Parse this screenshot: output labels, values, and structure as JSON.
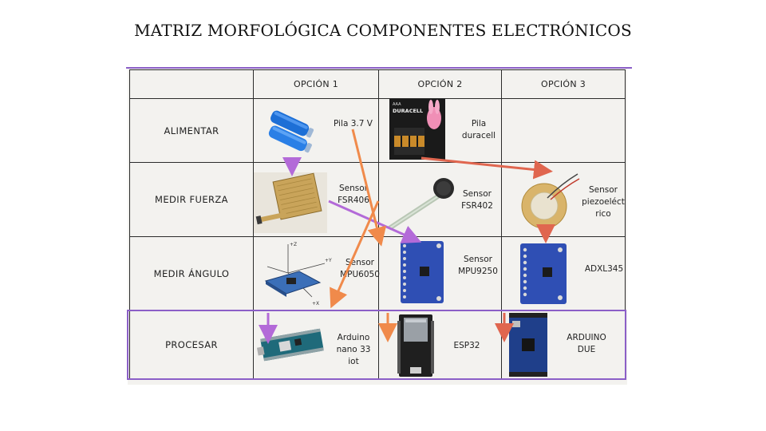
{
  "title": "MATRIZ MORFOLÓGICA COMPONENTES ELECTRÓNICOS",
  "headers": [
    "OPCIÓN 1",
    "OPCIÓN 2",
    "OPCIÓN 3"
  ],
  "rows": [
    {
      "label": "ALIMENTAR",
      "options": [
        "Pila 3.7 V",
        "Pila\nduracell",
        ""
      ]
    },
    {
      "label": "MEDIR FUERZA",
      "options": [
        "Sensor\nFSR406",
        "Sensor\nFSR402",
        "Sensor\npiezoeléct\nrico"
      ]
    },
    {
      "label": "MEDIR ÁNGULO",
      "options": [
        "Sensor\nMPU6050",
        "Sensor\nMPU9250",
        "ADXL345"
      ]
    },
    {
      "label": "PROCESAR",
      "options": [
        "Arduino\nnano 33\niot",
        "ESP32",
        "ARDUINO\nDUE"
      ]
    }
  ],
  "brand_text": "DURACELL",
  "colors": {
    "purple": "#b36ad8",
    "orange": "#f08a4b",
    "red": "#e0664f",
    "frame": "#8b5fc7"
  }
}
